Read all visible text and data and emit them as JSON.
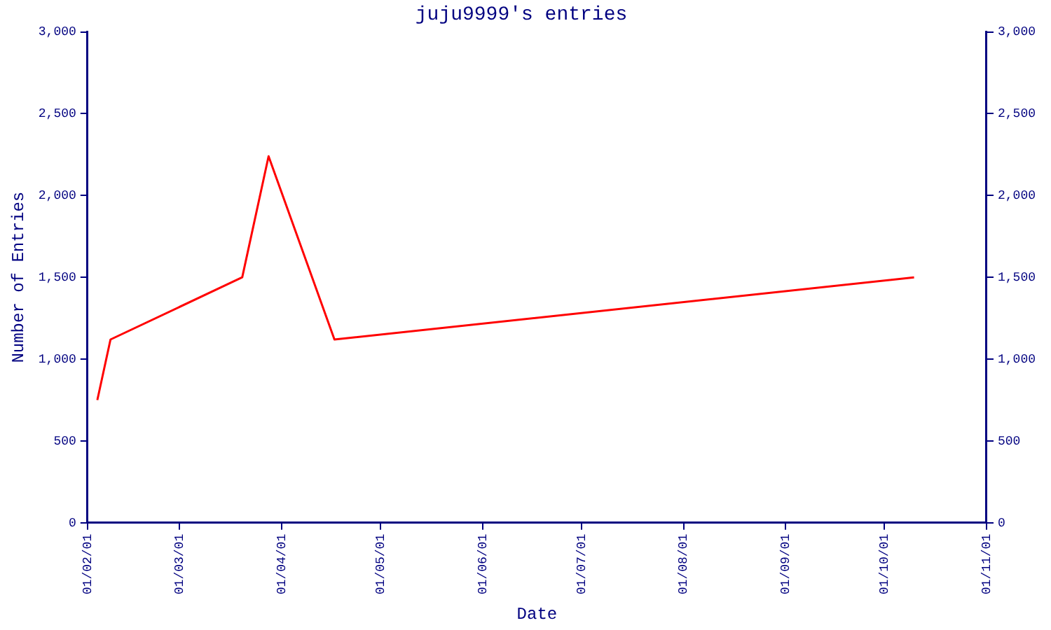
{
  "chart_data": {
    "type": "line",
    "title": "juju9999's entries",
    "xlabel": "Date",
    "ylabel": "Number of Entries",
    "x": [
      "--02-04",
      "--02-08",
      "--03-20",
      "--03-28",
      "--04-17",
      "--10-10"
    ],
    "series": [
      {
        "color": "#ff0000",
        "values": [
          750,
          1120,
          1500,
          2240,
          1120,
          1500
        ]
      }
    ],
    "xlim": [
      "--02-01",
      "--11-01"
    ],
    "xticks": [
      {
        "value": "--02-01",
        "label": "01/02/01"
      },
      {
        "value": "--03-01",
        "label": "01/03/01"
      },
      {
        "value": "--04-01",
        "label": "01/04/01"
      },
      {
        "value": "--05-01",
        "label": "01/05/01"
      },
      {
        "value": "--06-01",
        "label": "01/06/01"
      },
      {
        "value": "--07-01",
        "label": "01/07/01"
      },
      {
        "value": "--08-01",
        "label": "01/08/01"
      },
      {
        "value": "--09-01",
        "label": "01/09/01"
      },
      {
        "value": "--10-01",
        "label": "01/10/01"
      },
      {
        "value": "--11-01",
        "label": "01/11/01"
      }
    ],
    "ylim": [
      0,
      3000
    ],
    "yticks": [
      0,
      {
        "value": 500,
        "label": "500"
      },
      {
        "value": 1000,
        "label": "1,000"
      },
      {
        "value": 1500,
        "label": "1,500"
      },
      {
        "value": 2000,
        "label": "2,000"
      },
      {
        "value": 2500,
        "label": "2,500"
      },
      {
        "value": 3000,
        "label": "3,000"
      }
    ],
    "y2lim": [
      0,
      3000
    ],
    "y2ticks": [
      0,
      {
        "value": 500,
        "label": "500"
      },
      {
        "value": 1000,
        "label": "1,000"
      },
      {
        "value": 1500,
        "label": "1,500"
      },
      {
        "value": 2000,
        "label": "2,000"
      },
      {
        "value": 2500,
        "label": "2,500"
      },
      {
        "value": 3000,
        "label": "3,000"
      }
    ],
    "grid": false,
    "legend": false,
    "marker": "none",
    "line_style": "solid"
  }
}
